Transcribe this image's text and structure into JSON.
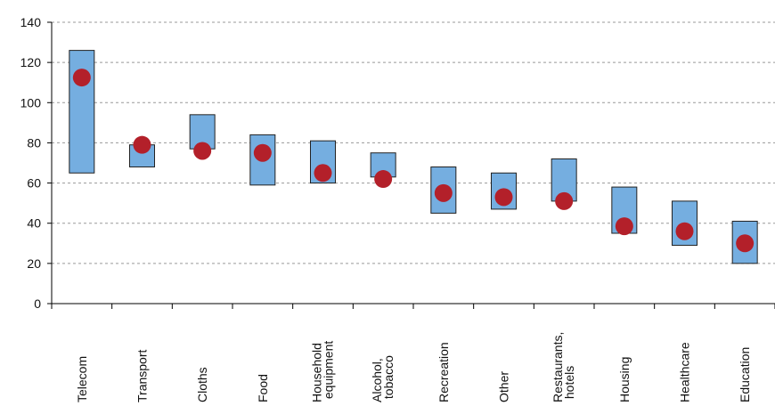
{
  "chart_data": {
    "type": "range",
    "categories": [
      "Telecom",
      "Transport",
      "Cloths",
      "Food",
      "Household equipment",
      "Alcohol, tobacco",
      "Recreation",
      "Other",
      "Restaurants, hotels",
      "Housing",
      "Healthcare",
      "Education"
    ],
    "low": [
      65,
      68,
      77,
      59,
      60,
      63,
      45,
      47,
      51,
      35,
      29,
      20
    ],
    "high": [
      126,
      79,
      94,
      84,
      81,
      75,
      68,
      65,
      72,
      58,
      51,
      41
    ],
    "values": [
      112.5,
      79,
      76,
      75,
      65,
      62,
      55,
      53,
      51,
      38.5,
      36,
      30
    ],
    "bar_color": "#75aee0",
    "dot_color": "#b3202a",
    "ylim": [
      0,
      140
    ],
    "yticks": [
      0,
      20,
      40,
      60,
      80,
      100,
      120,
      140
    ],
    "grid": true
  }
}
